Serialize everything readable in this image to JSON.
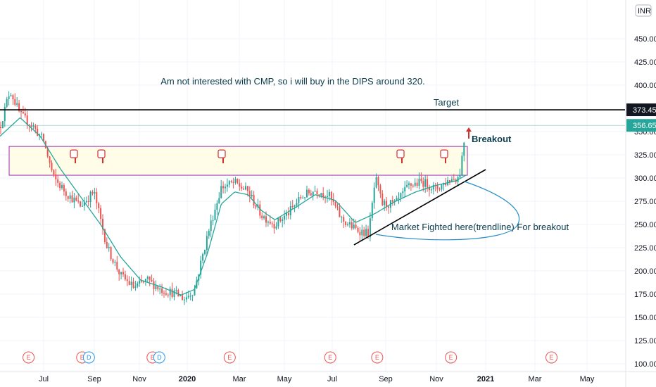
{
  "chart_data": {
    "type": "candlestick",
    "currency": "INR",
    "y_ticks": [
      100,
      125,
      150,
      175,
      200,
      225,
      250,
      275,
      300,
      325,
      350,
      400,
      425,
      450
    ],
    "y_tick_labels": [
      "100.00",
      "125.00",
      "150.00",
      "175.00",
      "200.00",
      "225.00",
      "250.00",
      "275.00",
      "300.00",
      "325.00",
      "350.00",
      "400.00",
      "425.00",
      "450.00"
    ],
    "ylim": [
      97,
      475
    ],
    "x_tick_labels": [
      "Jul",
      "Sep",
      "Nov",
      "2020",
      "Mar",
      "May",
      "Jul",
      "Sep",
      "Nov",
      "2021",
      "Mar",
      "May"
    ],
    "price_path": [
      [
        0,
        355
      ],
      [
        0.03,
        395
      ],
      [
        0.06,
        368
      ],
      [
        0.1,
        355
      ],
      [
        0.13,
        340
      ],
      [
        0.16,
        300
      ],
      [
        0.2,
        283
      ],
      [
        0.24,
        270
      ],
      [
        0.28,
        285
      ],
      [
        0.32,
        225
      ],
      [
        0.36,
        195
      ],
      [
        0.4,
        182
      ],
      [
        0.44,
        190
      ],
      [
        0.48,
        180
      ],
      [
        0.52,
        176
      ],
      [
        0.55,
        170
      ],
      [
        0.58,
        180
      ],
      [
        0.62,
        240
      ],
      [
        0.66,
        290
      ],
      [
        0.7,
        295
      ],
      [
        0.74,
        285
      ],
      [
        0.78,
        260
      ],
      [
        0.82,
        250
      ],
      [
        0.86,
        262
      ],
      [
        0.9,
        280
      ],
      [
        0.94,
        287
      ],
      [
        0.98,
        282
      ],
      [
        1.02,
        255
      ],
      [
        1.06,
        245
      ],
      [
        1.1,
        240
      ],
      [
        1.12,
        300
      ],
      [
        1.14,
        272
      ],
      [
        1.18,
        272
      ],
      [
        1.22,
        292
      ],
      [
        1.26,
        296
      ],
      [
        1.3,
        288
      ],
      [
        1.34,
        298
      ],
      [
        1.37,
        301
      ],
      [
        1.39,
        355
      ]
    ],
    "ma_path": [
      [
        0,
        345
      ],
      [
        0.06,
        365
      ],
      [
        0.12,
        345
      ],
      [
        0.18,
        310
      ],
      [
        0.24,
        280
      ],
      [
        0.3,
        250
      ],
      [
        0.36,
        215
      ],
      [
        0.42,
        190
      ],
      [
        0.48,
        183
      ],
      [
        0.54,
        174
      ],
      [
        0.58,
        180
      ],
      [
        0.62,
        220
      ],
      [
        0.66,
        272
      ],
      [
        0.7,
        285
      ],
      [
        0.74,
        282
      ],
      [
        0.78,
        265
      ],
      [
        0.82,
        255
      ],
      [
        0.88,
        268
      ],
      [
        0.94,
        282
      ],
      [
        1.0,
        276
      ],
      [
        1.06,
        252
      ],
      [
        1.12,
        262
      ],
      [
        1.18,
        275
      ],
      [
        1.24,
        285
      ],
      [
        1.3,
        292
      ],
      [
        1.36,
        297
      ],
      [
        1.39,
        303
      ]
    ],
    "last_price": 356.65,
    "last_price_label": "356.65",
    "target_level": 373.45,
    "target_label": "373.45",
    "buy_zone": [
      303,
      334
    ],
    "events": [
      {
        "t": 0.06,
        "type": "E"
      },
      {
        "t": 0.22,
        "type": "E"
      },
      {
        "t": 0.24,
        "type": "D"
      },
      {
        "t": 0.43,
        "type": "E"
      },
      {
        "t": 0.45,
        "type": "D"
      },
      {
        "t": 0.66,
        "type": "E"
      },
      {
        "t": 0.96,
        "type": "E"
      },
      {
        "t": 1.1,
        "type": "E"
      },
      {
        "t": 1.32,
        "type": "E"
      },
      {
        "t": 1.62,
        "type": "E"
      }
    ],
    "annotations": {
      "headline": "Am not interested with CMP, so i will buy in the DIPS around 320.",
      "target": "Target",
      "breakout": "Breakout",
      "trendline_note": "Market Fighted here(trendline) For breakout"
    },
    "colors": {
      "up": "#26a69a",
      "down": "#ef5350",
      "ma": "#26a69a",
      "zone_fill": "#fffde7",
      "zone_border": "#9c27b0",
      "target_line": "#000000",
      "price_tag": "#26a69a",
      "breakout_text": "#d32f2f",
      "curve": "#2a8fc9",
      "annotation_text": "#0c3c4c"
    }
  }
}
